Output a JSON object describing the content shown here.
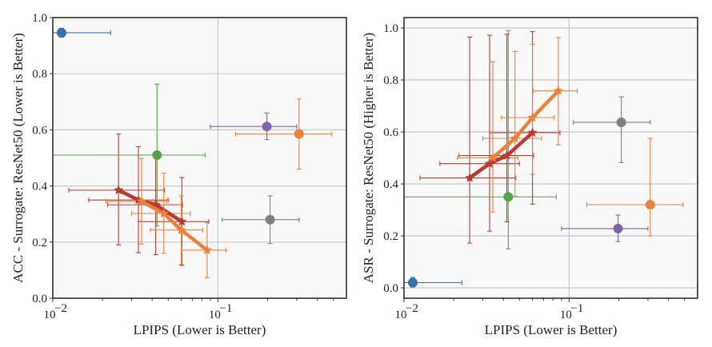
{
  "chart_data": [
    {
      "type": "scatter",
      "xscale": "log",
      "xlabel": "LPIPS (Lower is Better)",
      "ylabel": "ACC - Surrogate: ResNet50 (Lower is Better)",
      "xlim": [
        0.01,
        0.6
      ],
      "ylim": [
        0.0,
        1.0
      ],
      "xticks": [
        {
          "value": 0.01,
          "base": "10",
          "exp": "−2"
        },
        {
          "value": 0.1,
          "base": "10",
          "exp": "−1"
        }
      ],
      "yticks": [
        0.0,
        0.2,
        0.4,
        0.6,
        0.8,
        1.0
      ],
      "ytick_labels": [
        "0.0",
        "0.2",
        "0.4",
        "0.6",
        "0.8",
        "1.0"
      ],
      "grid": true,
      "points": [
        {
          "color": "#3a6fa8",
          "x": 0.0113,
          "y": 0.946,
          "xerr": [
            0.01,
            0.0224
          ],
          "yerr": [
            0.93,
            0.962
          ]
        },
        {
          "color": "#56a14b",
          "x": 0.0428,
          "y": 0.51,
          "xerr": [
            0.005,
            0.0836
          ],
          "yerr": [
            0.257,
            0.763
          ]
        },
        {
          "color": "#7d65a8",
          "x": 0.198,
          "y": 0.612,
          "xerr": [
            0.09,
            0.3
          ],
          "yerr": [
            0.565,
            0.66
          ]
        },
        {
          "color": "#e8823c",
          "x": 0.31,
          "y": 0.585,
          "xerr": [
            0.128,
            0.49
          ],
          "yerr": [
            0.46,
            0.71
          ]
        },
        {
          "color": "#7f7f7f",
          "x": 0.207,
          "y": 0.28,
          "xerr": [
            0.106,
            0.31
          ],
          "yerr": [
            0.195,
            0.365
          ]
        }
      ],
      "series": [
        {
          "name": "red-stars",
          "color": "#b83a33",
          "points": [
            {
              "x": 0.025,
              "y": 0.385,
              "xerr": [
                0.0125,
                0.0475
              ],
              "yerr": [
                0.19,
                0.585
              ]
            },
            {
              "x": 0.033,
              "y": 0.35,
              "xerr": [
                0.0165,
                0.05
              ],
              "yerr": [
                0.162,
                0.54
              ]
            },
            {
              "x": 0.042,
              "y": 0.333,
              "xerr": [
                0.0215,
                0.061
              ],
              "yerr": [
                0.155,
                0.51
              ]
            },
            {
              "x": 0.0605,
              "y": 0.273,
              "xerr": [
                0.033,
                0.088
              ],
              "yerr": [
                0.117,
                0.43
              ]
            }
          ]
        },
        {
          "name": "orange-stars",
          "color": "#e8823c",
          "points": [
            {
              "x": 0.0345,
              "y": 0.345,
              "xerr": [
                0.021,
                0.049
              ],
              "yerr": [
                0.193,
                0.498
              ]
            },
            {
              "x": 0.047,
              "y": 0.302,
              "xerr": [
                0.03,
                0.068
              ],
              "yerr": [
                0.16,
                0.446
              ]
            },
            {
              "x": 0.06,
              "y": 0.243,
              "xerr": [
                0.039,
                0.081
              ],
              "yerr": [
                0.12,
                0.365
              ]
            },
            {
              "x": 0.086,
              "y": 0.171,
              "xerr": [
                0.0605,
                0.112
              ],
              "yerr": [
                0.073,
                0.27
              ]
            }
          ]
        }
      ]
    },
    {
      "type": "scatter",
      "xscale": "log",
      "xlabel": "LPIPS (Lower is Better)",
      "ylabel": "ASR - Surrogate: ResNet50 (Higher is Better)",
      "xlim": [
        0.01,
        0.6
      ],
      "ylim": [
        -0.04,
        1.04
      ],
      "xticks": [
        {
          "value": 0.01,
          "base": "10",
          "exp": "−2"
        },
        {
          "value": 0.1,
          "base": "10",
          "exp": "−1"
        }
      ],
      "yticks": [
        0.0,
        0.2,
        0.4,
        0.6,
        0.8,
        1.0
      ],
      "ytick_labels": [
        "0.0",
        "0.2",
        "0.4",
        "0.6",
        "0.8",
        "1.0"
      ],
      "grid": true,
      "points": [
        {
          "color": "#3a6fa8",
          "x": 0.0113,
          "y": 0.02,
          "xerr": [
            0.01,
            0.0224
          ],
          "yerr": [
            0.003,
            0.04
          ]
        },
        {
          "color": "#56a14b",
          "x": 0.0428,
          "y": 0.35,
          "xerr": [
            0.005,
            0.0836
          ],
          "yerr": [
            0.15,
            0.99
          ]
        },
        {
          "color": "#7f7f7f",
          "x": 0.207,
          "y": 0.637,
          "xerr": [
            0.106,
            0.31
          ],
          "yerr": [
            0.482,
            0.735
          ]
        },
        {
          "color": "#e8823c",
          "x": 0.31,
          "y": 0.32,
          "xerr": [
            0.128,
            0.49
          ],
          "yerr": [
            0.2,
            0.575
          ]
        },
        {
          "color": "#7d65a8",
          "x": 0.198,
          "y": 0.228,
          "xerr": [
            0.09,
            0.3
          ],
          "yerr": [
            0.178,
            0.28
          ]
        }
      ],
      "series": [
        {
          "name": "red-stars",
          "color": "#b83a33",
          "points": [
            {
              "x": 0.025,
              "y": 0.423,
              "xerr": [
                0.0125,
                0.0475
              ],
              "yerr": [
                0.172,
                0.965
              ]
            },
            {
              "x": 0.033,
              "y": 0.478,
              "xerr": [
                0.0165,
                0.05
              ],
              "yerr": [
                0.218,
                0.972
              ]
            },
            {
              "x": 0.042,
              "y": 0.509,
              "xerr": [
                0.0215,
                0.061
              ],
              "yerr": [
                0.254,
                0.976
              ]
            },
            {
              "x": 0.06,
              "y": 0.597,
              "xerr": [
                0.033,
                0.088
              ],
              "yerr": [
                0.322,
                0.986
              ]
            }
          ]
        },
        {
          "name": "orange-stars",
          "color": "#e8823c",
          "points": [
            {
              "x": 0.0345,
              "y": 0.5,
              "xerr": [
                0.021,
                0.049
              ],
              "yerr": [
                0.292,
                0.87
              ]
            },
            {
              "x": 0.047,
              "y": 0.575,
              "xerr": [
                0.03,
                0.068
              ],
              "yerr": [
                0.352,
                0.91
              ]
            },
            {
              "x": 0.06,
              "y": 0.655,
              "xerr": [
                0.039,
                0.081
              ],
              "yerr": [
                0.437,
                0.937
              ]
            },
            {
              "x": 0.086,
              "y": 0.758,
              "xerr": [
                0.0605,
                0.112
              ],
              "yerr": [
                0.55,
                0.963
              ]
            }
          ]
        }
      ]
    }
  ]
}
